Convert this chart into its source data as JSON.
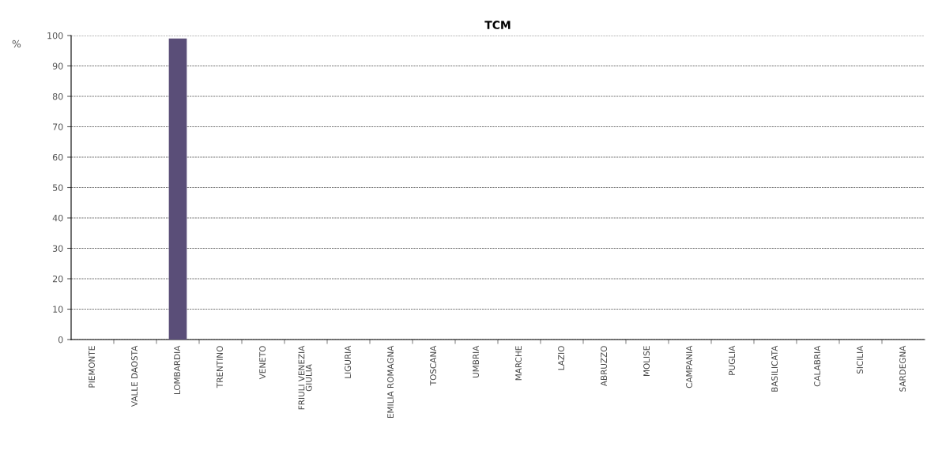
{
  "chart_data": {
    "type": "bar",
    "title": "TCM",
    "ylabel": "%",
    "categories": [
      "PIEMONTE",
      "VALLE DAOSTA",
      "LOMBARDIA",
      "TRENTINO",
      "VENETO",
      "FRIULI VENEZIA\nGIULIA",
      "LIGURIA",
      "EMILIA ROMAGNA",
      "TOSCANA",
      "UMBRIA",
      "MARCHE",
      "LAZIO",
      "ABRUZZO",
      "MOLISE",
      "CAMPANIA",
      "PUGLIA",
      "BASILICATA",
      "CALABRIA",
      "SICILIA",
      "SARDEGNA"
    ],
    "values": [
      0,
      0,
      99,
      0,
      0,
      0,
      0,
      0,
      0,
      0,
      0,
      0,
      0,
      0,
      0,
      0,
      0,
      0,
      0,
      0
    ],
    "color": "#5a4e78",
    "ylim": [
      0,
      100
    ],
    "yticks": [
      0,
      10,
      20,
      30,
      40,
      50,
      60,
      70,
      80,
      90,
      100
    ],
    "grid": "y",
    "legend": false
  }
}
